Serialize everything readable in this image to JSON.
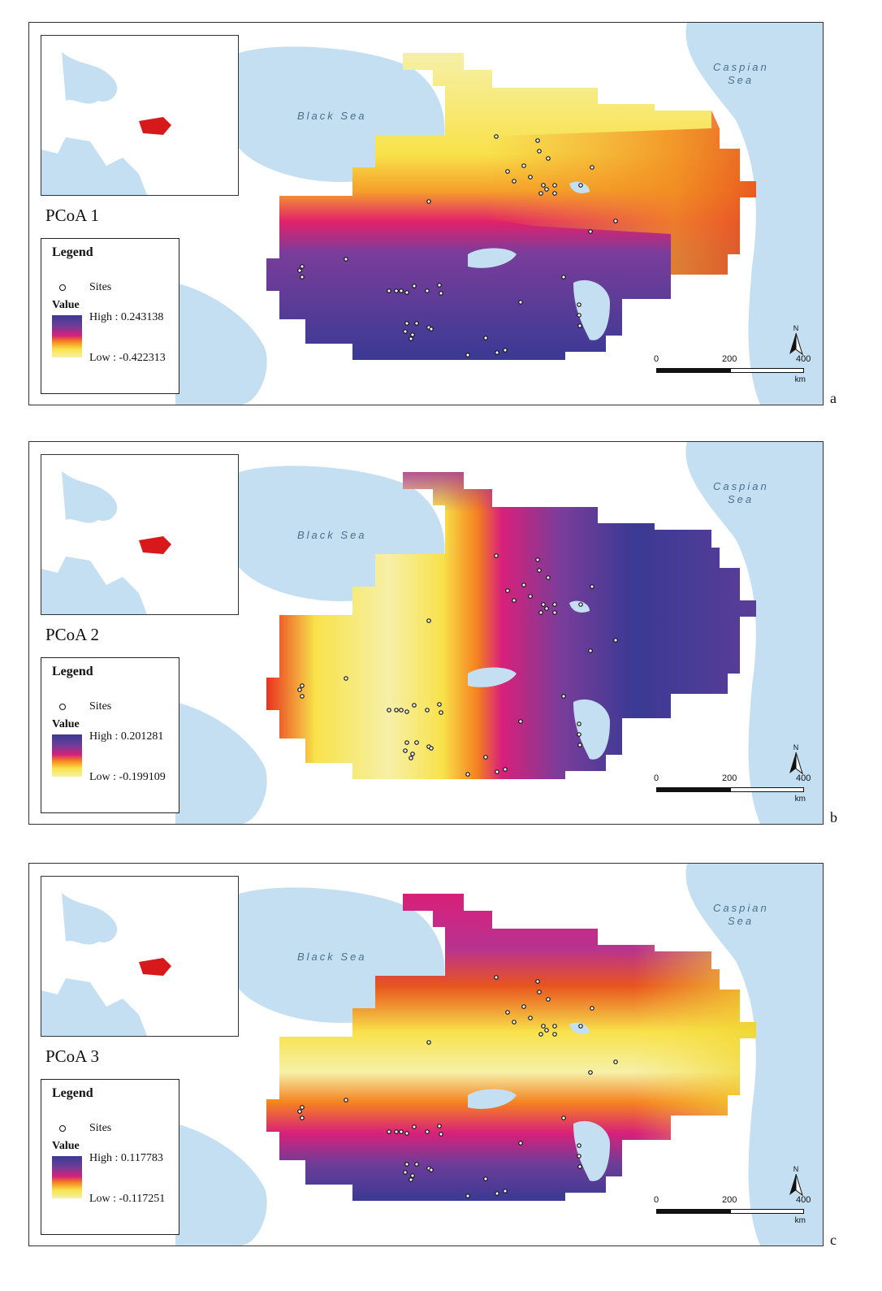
{
  "figure": {
    "sea_labels": {
      "black_sea": "Black Sea",
      "caspian_line1": "Caspian",
      "caspian_line2": "Sea"
    },
    "legend_title": "Legend",
    "legend_sites": "Sites",
    "legend_value": "Value",
    "scale_ticks": [
      "0",
      "200",
      "400"
    ],
    "scale_unit": "km",
    "north_label": "N",
    "colors": {
      "water": "#c4dff2",
      "land": "#ffffff",
      "inset_region": "#d7191c",
      "site_fill": "#ffffff",
      "site_stroke": "#111111"
    }
  },
  "panels": [
    {
      "id": "a",
      "title": "PCoA 1",
      "letter": "a",
      "high": "High : 0.243138",
      "low": "Low : -0.422313",
      "pattern": "north-yellow-south-purple"
    },
    {
      "id": "b",
      "title": "PCoA 2",
      "letter": "b",
      "high": "High : 0.201281",
      "low": "Low : -0.199109",
      "pattern": "west-yellow-east-purple"
    },
    {
      "id": "c",
      "title": "PCoA 3",
      "letter": "c",
      "high": "High : 0.117783",
      "low": "Low : -0.117251",
      "pattern": "mixed-band"
    }
  ]
}
